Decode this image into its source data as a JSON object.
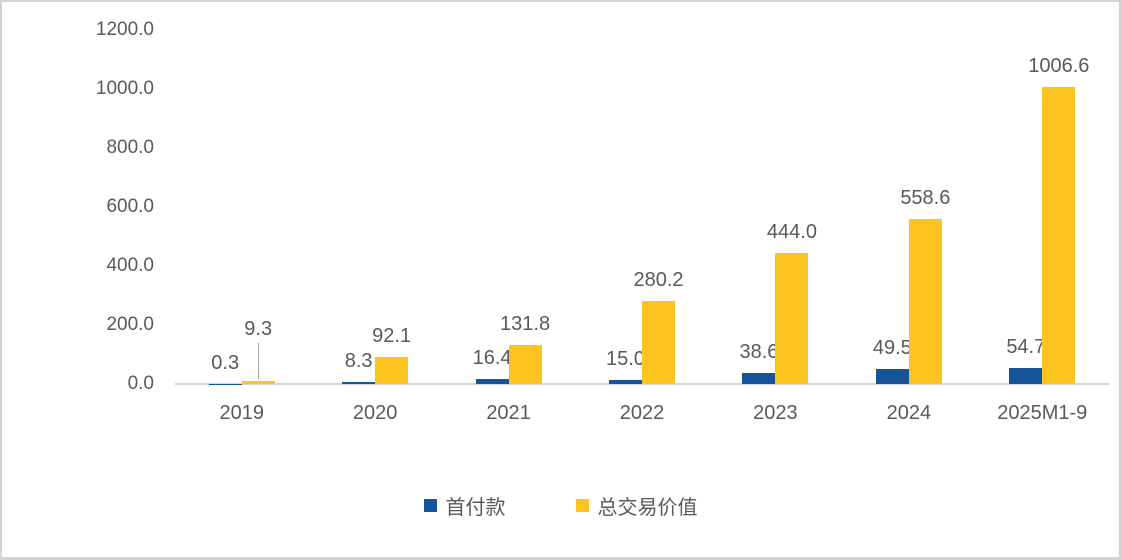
{
  "chart_data": {
    "type": "bar",
    "title": "",
    "categories": [
      "2019",
      "2020",
      "2021",
      "2022",
      "2023",
      "2024",
      "2025M1-9"
    ],
    "series": [
      {
        "name": "首付款",
        "color": "#15549A",
        "values": [
          0.3,
          8.3,
          16.4,
          15.0,
          38.6,
          49.5,
          54.7
        ]
      },
      {
        "name": "总交易价值",
        "color": "#FDC41F",
        "values": [
          9.3,
          92.1,
          131.8,
          280.2,
          444.0,
          558.6,
          1006.6
        ]
      }
    ],
    "data_labels": [
      "0.3",
      "8.3",
      "16.4",
      "15.0",
      "38.6",
      "49.5",
      "54.7",
      "9.3",
      "92.1",
      "131.8",
      "280.2",
      "444.0",
      "558.6",
      "1006.6"
    ],
    "y_axis": {
      "tick_labels": [
        "1200.0",
        "1000.0",
        "800.0",
        "600.0",
        "400.0",
        "200.0",
        "0.0"
      ],
      "min": 0,
      "max": 1200,
      "grid": false
    },
    "legend": {
      "position": "bottom",
      "entries": [
        "首付款",
        "总交易价值"
      ]
    },
    "colors": {
      "text": "#595959",
      "axis_line": "#d6d6d6",
      "leader_line": "#a6a6a6",
      "background": "#ffffff",
      "border": "#d3d3d3"
    }
  }
}
